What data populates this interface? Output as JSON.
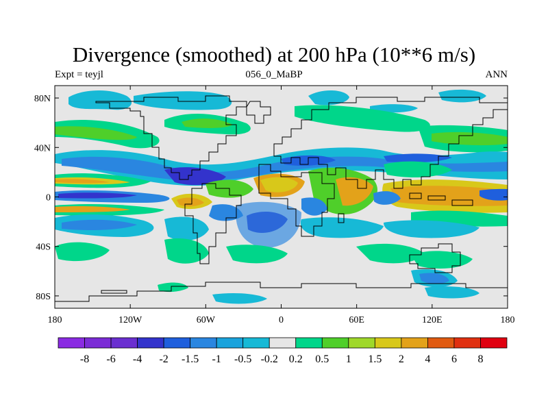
{
  "title": "Divergence (smoothed) at 200 hPa (10**6 m/s)",
  "subtitle_left": "Expt = teyjl",
  "subtitle_center": "056_0_MaBP",
  "subtitle_right": "ANN",
  "map": {
    "projection": "cylindrical-equidistant",
    "lon_range": [
      -180,
      180
    ],
    "lat_range": [
      -90,
      90
    ],
    "lat_ticks": [
      {
        "value": 80,
        "label": "80N"
      },
      {
        "value": 40,
        "label": "40N"
      },
      {
        "value": 0,
        "label": "0"
      },
      {
        "value": -40,
        "label": "40S"
      },
      {
        "value": -80,
        "label": "80S"
      }
    ],
    "lon_ticks": [
      {
        "value": -180,
        "label": "180"
      },
      {
        "value": -120,
        "label": "120W"
      },
      {
        "value": -60,
        "label": "60W"
      },
      {
        "value": 0,
        "label": "0"
      },
      {
        "value": 60,
        "label": "60E"
      },
      {
        "value": 120,
        "label": "120E"
      },
      {
        "value": 180,
        "label": "180"
      }
    ]
  },
  "colorbar": {
    "levels": [
      "-8",
      "-6",
      "-4",
      "-2",
      "-1.5",
      "-1",
      "-0.5",
      "-0.2",
      "0.2",
      "0.5",
      "1",
      "1.5",
      "2",
      "4",
      "6",
      "8"
    ],
    "colors": [
      "#8a2be2",
      "#7b2cd6",
      "#6a2fd0",
      "#3333cc",
      "#1f5fdd",
      "#2a86e0",
      "#1aa3dc",
      "#17b9d6",
      "#e6e6e6",
      "#00d68a",
      "#4fcf2a",
      "#9fd82a",
      "#d8c81a",
      "#e3a21a",
      "#e05a10",
      "#e03010",
      "#e00010"
    ]
  },
  "colors": {
    "background": "#e6e6e6",
    "coast": "#000000"
  }
}
